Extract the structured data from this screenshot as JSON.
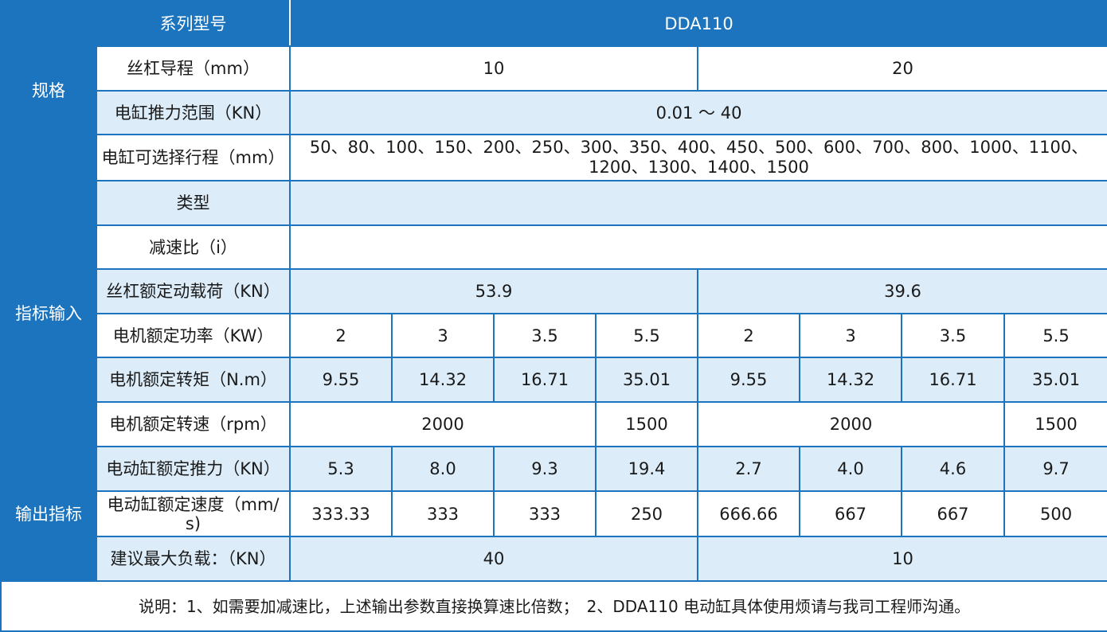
{
  "groups": {
    "spec": "规格",
    "input": "指标输入",
    "output": "输出指标"
  },
  "header": {
    "series_label": "系列型号",
    "model": "DDA110"
  },
  "rows": {
    "lead": {
      "label": "丝杠导程（mm）",
      "values": [
        "10",
        "20"
      ]
    },
    "thrust_range": {
      "label": "电缸推力范围（KN）",
      "value": "0.01 ～ 40"
    },
    "stroke": {
      "label": "电缸可选择行程（mm）",
      "value_line1": "50、80、100、150、200、250、300、350、400、450、500、600、700、800、1000、1100、",
      "value_line2": "1200、1300、1400、1500"
    },
    "type": {
      "label": "类型",
      "value": ""
    },
    "ratio": {
      "label": "减速比（i）",
      "value": ""
    },
    "screw_load": {
      "label": "丝杠额定动载荷（KN）",
      "values": [
        "53.9",
        "39.6"
      ]
    },
    "motor_power": {
      "label": "电机额定功率（KW）",
      "values": [
        "2",
        "3",
        "3.5",
        "5.5",
        "2",
        "3",
        "3.5",
        "5.5"
      ]
    },
    "motor_torque": {
      "label": "电机额定转矩（N.m）",
      "values": [
        "9.55",
        "14.32",
        "16.71",
        "35.01",
        "9.55",
        "14.32",
        "16.71",
        "35.01"
      ]
    },
    "motor_speed": {
      "label": "电机额定转速（rpm）",
      "values": [
        "2000",
        "1500",
        "2000",
        "1500"
      ]
    },
    "cyl_thrust": {
      "label": "电动缸额定推力（KN）",
      "values": [
        "5.3",
        "8.0",
        "9.3",
        "19.4",
        "2.7",
        "4.0",
        "4.6",
        "9.7"
      ]
    },
    "cyl_speed": {
      "label_line1": "电动缸额定速度（mm/",
      "label_line2": "s)",
      "values": [
        "333.33",
        "333",
        "333",
        "250",
        "666.66",
        "667",
        "667",
        "500"
      ]
    },
    "max_load": {
      "label": "建议最大负载：（KN）",
      "values": [
        "40",
        "10"
      ]
    }
  },
  "note": "说明：1、如需要加减速比，上述输出参数直接换算速比倍数；　2、DDA110 电动缸具体使用烦请与我司工程师沟通。"
}
